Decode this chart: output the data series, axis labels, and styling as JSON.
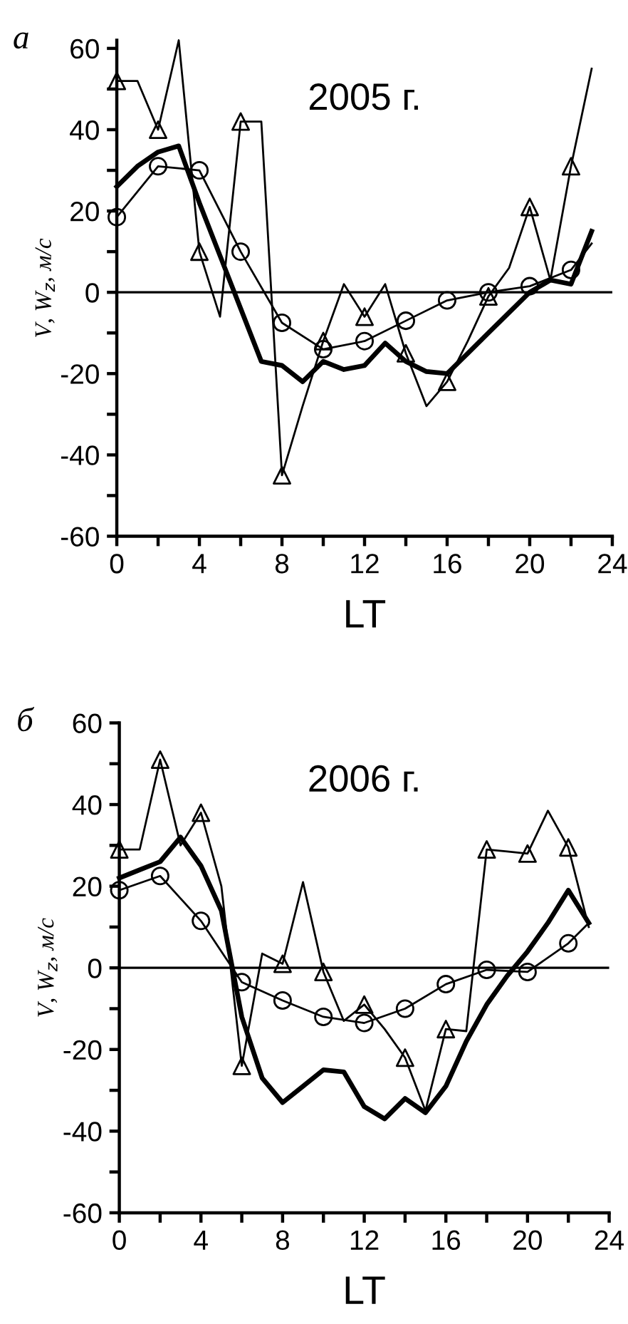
{
  "chart_data": [
    {
      "type": "line",
      "title": "2005 г.",
      "xlabel": "LT",
      "ylabel": "V, W$_{z}$, м/с",
      "annotations": [
        "а"
      ],
      "xlim": [
        0,
        24
      ],
      "xticks": [
        0,
        {
          "value": 2,
          "label": null
        },
        4,
        {
          "value": 6,
          "label": null
        },
        8,
        {
          "value": 10,
          "label": null
        },
        12,
        {
          "value": 14,
          "label": null
        },
        16,
        {
          "value": 18,
          "label": null
        },
        20,
        {
          "value": 22,
          "label": null
        },
        24
      ],
      "ylim": [
        -60,
        62
      ],
      "yticks": [
        -60,
        {
          "value": -50,
          "label": null
        },
        -40,
        {
          "value": -30,
          "label": null
        },
        -20,
        {
          "value": -10,
          "label": null
        },
        0,
        {
          "value": 10,
          "label": null
        },
        20,
        {
          "value": 30,
          "label": null
        },
        40,
        {
          "value": 50,
          "label": null
        },
        60
      ],
      "ref_lines": [
        {
          "axis": "y",
          "value": 0,
          "color": "#000000"
        }
      ],
      "grid": false,
      "legend": false,
      "series": [
        {
          "type": "line",
          "color": "#000000",
          "x": [
            0,
            1,
            2,
            3,
            4,
            5,
            6,
            7,
            8,
            9,
            10,
            11,
            12,
            13,
            14,
            15,
            16,
            17,
            18,
            19,
            20,
            21,
            22,
            23
          ],
          "values": [
            52,
            52,
            40,
            62,
            10,
            -6,
            42,
            42,
            -45,
            -28,
            -12,
            2,
            -6,
            2,
            -15,
            -28,
            -22,
            -12,
            -1,
            6,
            21,
            3,
            31,
            55
          ]
        },
        {
          "type": "scatter",
          "marker": "triangle",
          "color": "#000000",
          "x": [
            0,
            2,
            4,
            6,
            8,
            10,
            12,
            14,
            16,
            18,
            20,
            22
          ],
          "values": [
            52,
            40,
            10,
            42,
            -45,
            -12,
            -6,
            -15,
            -22,
            -1,
            21,
            31
          ]
        },
        {
          "type": "line",
          "color": "#000000",
          "x": [
            0,
            2,
            4,
            6,
            8,
            10,
            12,
            14,
            16,
            18,
            20,
            22,
            23
          ],
          "values": [
            18.5,
            31,
            30,
            10,
            -7.5,
            -14,
            -12,
            -7,
            -2,
            0,
            1.5,
            5.5,
            12
          ]
        },
        {
          "type": "scatter",
          "marker": "circle",
          "color": "#000000",
          "x": [
            0,
            2,
            4,
            6,
            8,
            10,
            12,
            14,
            16,
            18,
            20,
            22
          ],
          "values": [
            18.5,
            31,
            30,
            10,
            -7.5,
            -14,
            -12,
            -7,
            -2,
            0,
            1.5,
            5.5
          ]
        },
        {
          "type": "line",
          "color": "#000000",
          "x": [
            0,
            1,
            2,
            3,
            4,
            5,
            6,
            7,
            8,
            9,
            10,
            11,
            12,
            13,
            14,
            15,
            16,
            17,
            18,
            19,
            20,
            21,
            22,
            23
          ],
          "values": [
            26,
            31,
            34.5,
            36,
            22,
            9,
            -4,
            -17,
            -18,
            -22,
            -17,
            -19,
            -18,
            -12.5,
            -17,
            -19.5,
            -20,
            -15,
            -10,
            -5,
            0,
            3,
            2,
            15
          ]
        }
      ]
    },
    {
      "type": "line",
      "title": "2006 г.",
      "xlabel": "LT",
      "ylabel": "V, W$_{z}$, м/с",
      "annotations": [
        "б"
      ],
      "xlim": [
        0,
        24
      ],
      "xticks": [
        0,
        {
          "value": 2,
          "label": null
        },
        4,
        {
          "value": 6,
          "label": null
        },
        8,
        {
          "value": 10,
          "label": null
        },
        12,
        {
          "value": 14,
          "label": null
        },
        16,
        {
          "value": 18,
          "label": null
        },
        20,
        {
          "value": 22,
          "label": null
        },
        24
      ],
      "ylim": [
        -60,
        60
      ],
      "yticks": [
        -60,
        {
          "value": -50,
          "label": null
        },
        -40,
        {
          "value": -30,
          "label": null
        },
        -20,
        {
          "value": -10,
          "label": null
        },
        0,
        {
          "value": 10,
          "label": null
        },
        20,
        {
          "value": 30,
          "label": null
        },
        40,
        {
          "value": 50,
          "label": null
        },
        60
      ],
      "ref_lines": [
        {
          "axis": "y",
          "value": 0,
          "color": "#000000"
        }
      ],
      "grid": false,
      "legend": false,
      "series": [
        {
          "type": "line",
          "color": "#000000",
          "x": [
            0,
            1,
            2,
            3,
            4,
            5,
            6,
            7,
            8,
            9,
            10,
            11,
            12,
            13,
            14,
            15,
            16,
            17,
            18,
            19,
            20,
            21,
            22,
            23
          ],
          "values": [
            29,
            29,
            51,
            30,
            38,
            20,
            -24,
            3.5,
            1,
            21,
            -1,
            -13,
            -9,
            -15,
            -22,
            -35,
            -15,
            -15.5,
            29,
            28.5,
            28,
            38.5,
            29.5,
            10
          ]
        },
        {
          "type": "scatter",
          "marker": "triangle",
          "color": "#000000",
          "x": [
            0,
            2,
            4,
            6,
            8,
            10,
            12,
            14,
            16,
            18,
            20,
            22
          ],
          "values": [
            29,
            51,
            38,
            -24,
            1,
            -1,
            -9,
            -22,
            -15,
            29,
            28,
            29.5
          ]
        },
        {
          "type": "line",
          "color": "#000000",
          "x": [
            0,
            2,
            4,
            6,
            8,
            10,
            12,
            14,
            16,
            18,
            20,
            22,
            23
          ],
          "values": [
            19,
            22.5,
            11.5,
            -3.5,
            -8,
            -12,
            -13.5,
            -10,
            -4,
            -0.5,
            -1,
            6,
            11
          ]
        },
        {
          "type": "scatter",
          "marker": "circle",
          "color": "#000000",
          "x": [
            0,
            2,
            4,
            6,
            8,
            10,
            12,
            14,
            16,
            18,
            20,
            22
          ],
          "values": [
            19,
            22.5,
            11.5,
            -3.5,
            -8,
            -12,
            -13.5,
            -10,
            -4,
            -0.5,
            -1,
            6
          ]
        },
        {
          "type": "line",
          "color": "#000000",
          "x": [
            0,
            1,
            2,
            3,
            4,
            5,
            6,
            7,
            8,
            9,
            10,
            11,
            12,
            13,
            14,
            15,
            16,
            17,
            18,
            19,
            20,
            21,
            22,
            23
          ],
          "values": [
            22,
            24,
            26,
            32,
            25,
            14,
            -12,
            -27,
            -33,
            -29,
            -25,
            -25.5,
            -34,
            -37,
            -32,
            -35.5,
            -29,
            -18,
            -9,
            -2,
            4,
            11,
            19,
            11
          ]
        }
      ]
    }
  ]
}
